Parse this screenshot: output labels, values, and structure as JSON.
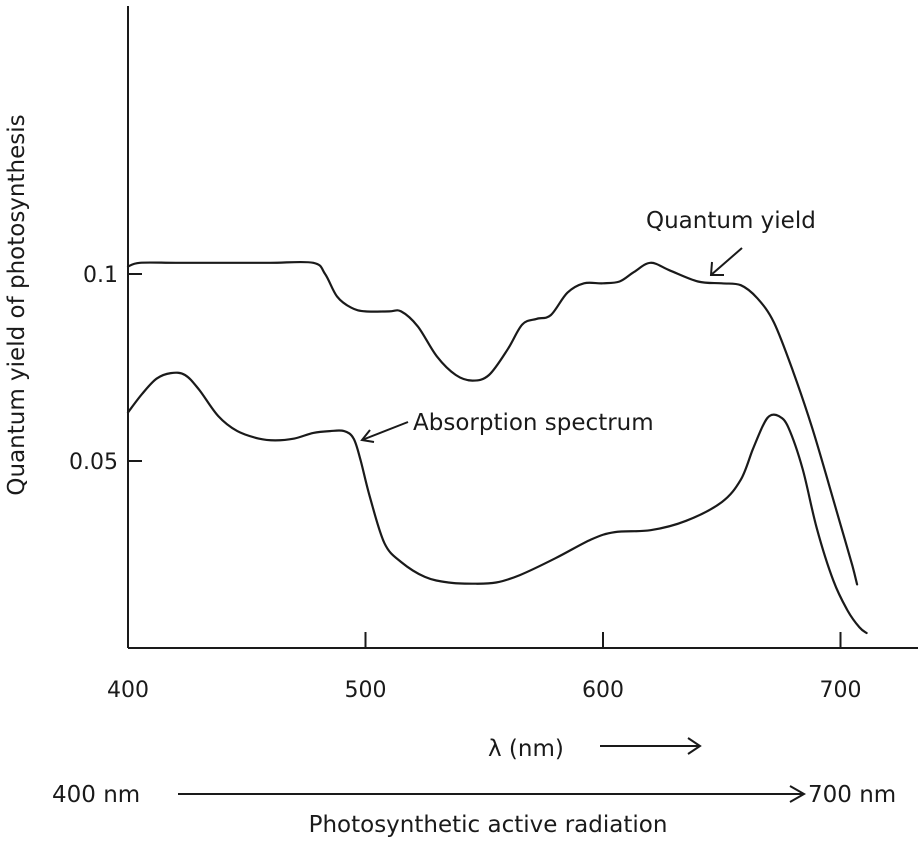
{
  "chart_data": {
    "type": "line",
    "xlabel": "λ (nm)",
    "ylabel": "Quantum yield of photosynthesis",
    "xlim": [
      400,
      715
    ],
    "ylim": [
      0,
      0.14
    ],
    "x_ticks": [
      400,
      500,
      600,
      700
    ],
    "y_ticks": [
      0.05,
      0.1
    ],
    "y_tick_labels": [
      "0.05",
      "0.1"
    ],
    "grid": false,
    "series": [
      {
        "name": "Quantum yield",
        "points": [
          [
            400,
            0.102
          ],
          [
            405,
            0.103
          ],
          [
            420,
            0.103
          ],
          [
            440,
            0.103
          ],
          [
            460,
            0.103
          ],
          [
            478,
            0.103
          ],
          [
            483,
            0.1
          ],
          [
            488,
            0.094
          ],
          [
            494,
            0.091
          ],
          [
            500,
            0.09
          ],
          [
            510,
            0.09
          ],
          [
            515,
            0.09
          ],
          [
            522,
            0.086
          ],
          [
            530,
            0.078
          ],
          [
            538,
            0.073
          ],
          [
            545,
            0.0715
          ],
          [
            552,
            0.073
          ],
          [
            560,
            0.08
          ],
          [
            566,
            0.0865
          ],
          [
            572,
            0.088
          ],
          [
            578,
            0.089
          ],
          [
            585,
            0.095
          ],
          [
            592,
            0.0975
          ],
          [
            600,
            0.0975
          ],
          [
            607,
            0.098
          ],
          [
            613,
            0.1005
          ],
          [
            620,
            0.103
          ],
          [
            628,
            0.101
          ],
          [
            640,
            0.098
          ],
          [
            650,
            0.0975
          ],
          [
            658,
            0.097
          ],
          [
            665,
            0.0935
          ],
          [
            672,
            0.087
          ],
          [
            680,
            0.074
          ],
          [
            688,
            0.059
          ],
          [
            695,
            0.044
          ],
          [
            700,
            0.033
          ],
          [
            705,
            0.022
          ],
          [
            707,
            0.017
          ]
        ]
      },
      {
        "name": "Absorption spectrum",
        "points": [
          [
            400,
            0.063
          ],
          [
            406,
            0.068
          ],
          [
            412,
            0.072
          ],
          [
            418,
            0.0735
          ],
          [
            424,
            0.073
          ],
          [
            430,
            0.069
          ],
          [
            438,
            0.062
          ],
          [
            446,
            0.058
          ],
          [
            455,
            0.056
          ],
          [
            462,
            0.0555
          ],
          [
            470,
            0.056
          ],
          [
            478,
            0.0575
          ],
          [
            485,
            0.058
          ],
          [
            491,
            0.058
          ],
          [
            495,
            0.056
          ],
          [
            498,
            0.05
          ],
          [
            502,
            0.04
          ],
          [
            508,
            0.028
          ],
          [
            515,
            0.023
          ],
          [
            525,
            0.019
          ],
          [
            535,
            0.0175
          ],
          [
            545,
            0.0172
          ],
          [
            555,
            0.0175
          ],
          [
            565,
            0.0195
          ],
          [
            580,
            0.024
          ],
          [
            595,
            0.029
          ],
          [
            605,
            0.031
          ],
          [
            620,
            0.0315
          ],
          [
            635,
            0.034
          ],
          [
            650,
            0.039
          ],
          [
            658,
            0.045
          ],
          [
            663,
            0.053
          ],
          [
            667,
            0.059
          ],
          [
            670,
            0.062
          ],
          [
            674,
            0.062
          ],
          [
            678,
            0.059
          ],
          [
            684,
            0.048
          ],
          [
            690,
            0.032
          ],
          [
            697,
            0.018
          ],
          [
            703,
            0.01
          ],
          [
            708,
            0.0055
          ],
          [
            711,
            0.004
          ]
        ]
      }
    ],
    "annotations": {
      "quantum_yield": "Quantum yield",
      "absorption": "Absorption spectrum",
      "wavelength_label": "λ (nm)",
      "par_start": "400 nm",
      "par_end": "700 nm",
      "par_label": "Photosynthetic active radiation"
    }
  }
}
